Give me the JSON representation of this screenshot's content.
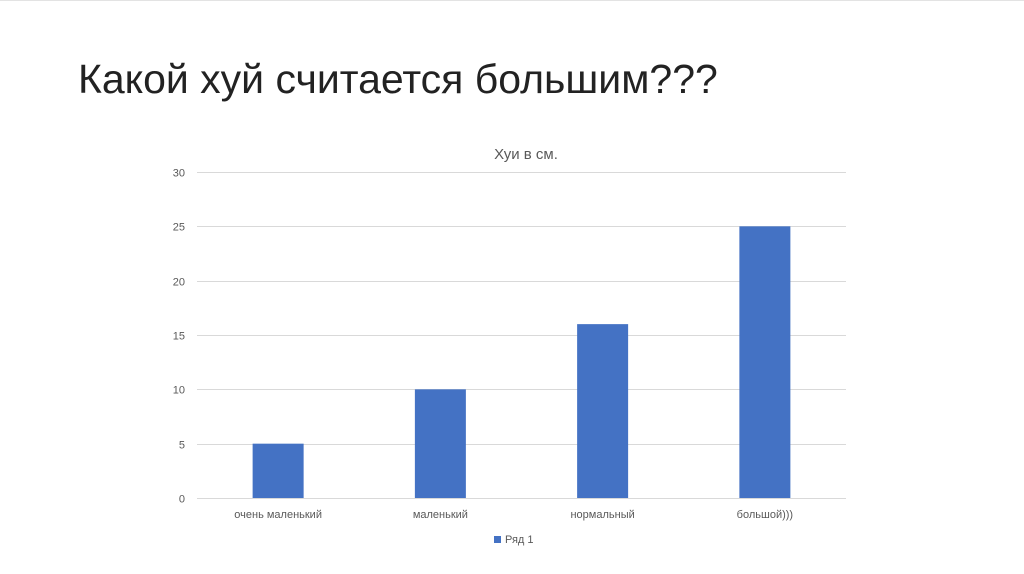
{
  "slide": {
    "title": "Какой хуй считается большим???"
  },
  "chart_data": {
    "type": "bar",
    "title": "Хуи в см.",
    "xlabel": "",
    "ylabel": "",
    "categories": [
      "очень маленький",
      "маленький",
      "нормальный",
      "большой)))"
    ],
    "series": [
      {
        "name": "Ряд 1",
        "values": [
          5,
          10,
          16,
          25
        ],
        "color": "#4472C4"
      }
    ],
    "ylim": [
      0,
      30
    ],
    "yticks": [
      0,
      5,
      10,
      15,
      20,
      25,
      30
    ],
    "grid": true,
    "legend_position": "bottom"
  }
}
